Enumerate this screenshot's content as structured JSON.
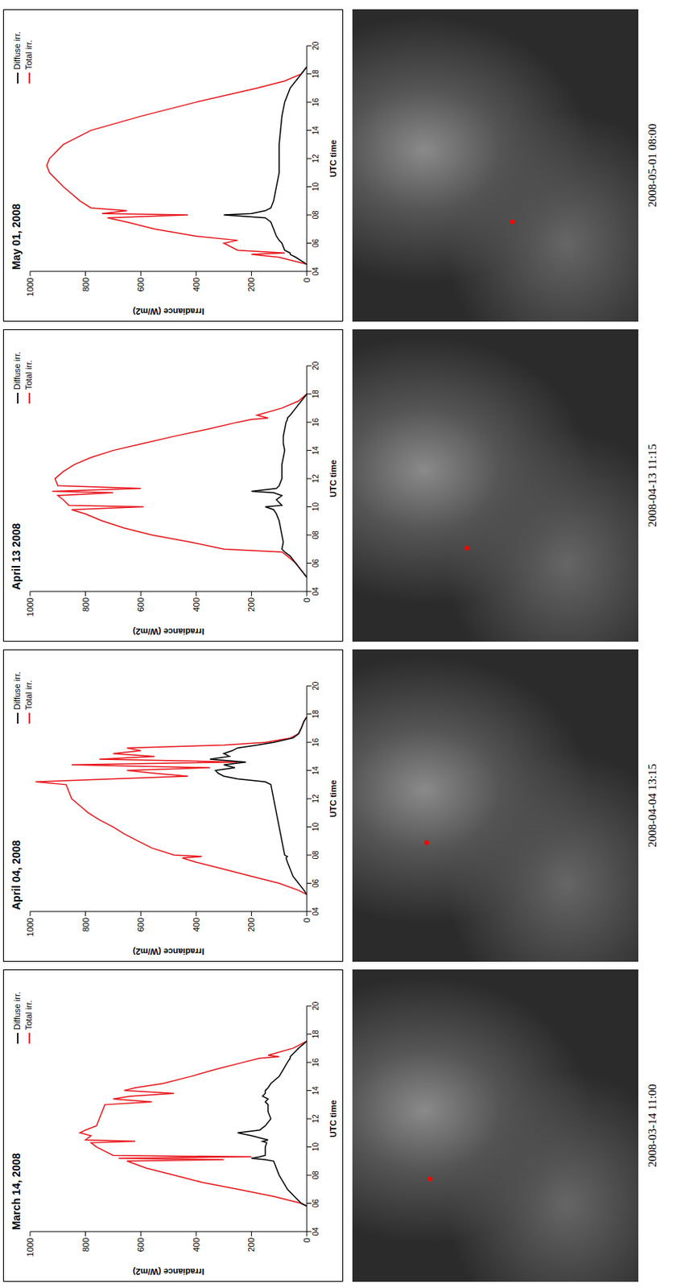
{
  "chart_data": [
    {
      "type": "line",
      "title": "March 14, 2008",
      "x_label": "UTC time",
      "y_label": "Irradiance (W/m2)",
      "xlim": [
        4,
        20
      ],
      "xticks": [
        {
          "value": 4,
          "label": "04"
        },
        {
          "value": 6,
          "label": "06"
        },
        {
          "value": 8,
          "label": "08"
        },
        {
          "value": 10,
          "label": "10"
        },
        {
          "value": 12,
          "label": "12"
        },
        {
          "value": 14,
          "label": "14"
        },
        {
          "value": 16,
          "label": "16"
        },
        {
          "value": 18,
          "label": "18"
        },
        {
          "value": 20,
          "label": "20"
        }
      ],
      "ylim": [
        0,
        1000
      ],
      "yticks": [
        0,
        200,
        400,
        600,
        800,
        1000
      ],
      "grid": false,
      "legend": "upper right",
      "x": [
        5.8,
        6,
        6.5,
        7,
        7.5,
        8,
        8.5,
        9,
        9.1,
        9.2,
        9.3,
        9.4,
        9.6,
        10,
        10.3,
        10.4,
        10.5,
        10.8,
        11,
        11.2,
        11.5,
        12,
        12.5,
        13,
        13.2,
        13.4,
        13.6,
        13.8,
        14,
        14.2,
        14.5,
        15,
        15.5,
        16,
        16.3,
        16.4,
        16.5,
        17,
        17.5
      ],
      "series": [
        {
          "name": "Total irr.",
          "color": "#e8151b",
          "values": [
            0,
            20,
            120,
            250,
            380,
            480,
            580,
            650,
            300,
            680,
            200,
            700,
            720,
            760,
            780,
            620,
            800,
            780,
            820,
            800,
            760,
            750,
            740,
            730,
            560,
            700,
            640,
            480,
            660,
            620,
            520,
            420,
            330,
            230,
            170,
            100,
            140,
            50,
            0
          ]
        },
        {
          "name": "Diffuse irr.",
          "color": "#000000",
          "values": [
            0,
            20,
            45,
            70,
            85,
            100,
            110,
            120,
            150,
            200,
            170,
            150,
            150,
            150,
            145,
            160,
            140,
            200,
            250,
            170,
            150,
            130,
            140,
            140,
            150,
            140,
            160,
            150,
            150,
            140,
            130,
            100,
            85,
            70,
            60,
            60,
            55,
            30,
            0
          ]
        }
      ]
    },
    {
      "type": "line",
      "title": "April 04, 2008",
      "x_label": "UTC time",
      "y_label": "Irradiance (W/m2)",
      "xlim": [
        4,
        20
      ],
      "xticks": [
        {
          "value": 4,
          "label": "04"
        },
        {
          "value": 6,
          "label": "06"
        },
        {
          "value": 8,
          "label": "08"
        },
        {
          "value": 10,
          "label": "10"
        },
        {
          "value": 12,
          "label": "12"
        },
        {
          "value": 14,
          "label": "14"
        },
        {
          "value": 16,
          "label": "16"
        },
        {
          "value": 18,
          "label": "18"
        },
        {
          "value": 20,
          "label": "20"
        }
      ],
      "ylim": [
        0,
        1000
      ],
      "yticks": [
        0,
        200,
        400,
        600,
        800,
        1000
      ],
      "grid": false,
      "legend": "upper right",
      "x": [
        5.2,
        5.5,
        6,
        6.5,
        7,
        7.5,
        7.8,
        7.9,
        8,
        8.5,
        9,
        9.5,
        10,
        10.5,
        11,
        11.5,
        12,
        12.5,
        13,
        13.2,
        13.4,
        13.6,
        13.8,
        14,
        14.2,
        14.4,
        14.6,
        14.8,
        15,
        15.2,
        15.4,
        15.6,
        15.8,
        16,
        16.3,
        16.6,
        17,
        17.5,
        17.8
      ],
      "series": [
        {
          "name": "Total irr.",
          "color": "#e8151b",
          "values": [
            0,
            30,
            100,
            200,
            300,
            400,
            450,
            380,
            480,
            560,
            610,
            660,
            700,
            750,
            790,
            820,
            850,
            860,
            870,
            980,
            700,
            430,
            550,
            650,
            350,
            850,
            250,
            750,
            550,
            700,
            600,
            650,
            300,
            150,
            60,
            30,
            20,
            10,
            0
          ]
        },
        {
          "name": "Diffuse irr.",
          "color": "#000000",
          "values": [
            0,
            10,
            30,
            50,
            60,
            70,
            75,
            70,
            80,
            85,
            90,
            95,
            100,
            105,
            110,
            115,
            120,
            125,
            130,
            150,
            250,
            300,
            320,
            330,
            260,
            300,
            220,
            350,
            280,
            300,
            270,
            250,
            180,
            120,
            50,
            30,
            20,
            10,
            0
          ]
        }
      ]
    },
    {
      "type": "line",
      "title": "April 13 2008",
      "x_label": "UTC time",
      "y_label": "Irradiance (W/m2)",
      "xlim": [
        4,
        20
      ],
      "xticks": [
        {
          "value": 4,
          "label": "04"
        },
        {
          "value": 6,
          "label": "06"
        },
        {
          "value": 8,
          "label": "08"
        },
        {
          "value": 10,
          "label": "10"
        },
        {
          "value": 12,
          "label": "12"
        },
        {
          "value": 14,
          "label": "14"
        },
        {
          "value": 16,
          "label": "16"
        },
        {
          "value": 18,
          "label": "18"
        },
        {
          "value": 20,
          "label": "20"
        }
      ],
      "ylim": [
        0,
        1000
      ],
      "yticks": [
        0,
        200,
        400,
        600,
        800,
        1000
      ],
      "grid": false,
      "legend": "upper right",
      "x": [
        5,
        5.5,
        6,
        6.5,
        6.8,
        7,
        7.5,
        8,
        8.5,
        9,
        9.5,
        9.8,
        10,
        10.1,
        10.5,
        10.8,
        11,
        11.1,
        11.3,
        11.5,
        12,
        12.5,
        13,
        13.5,
        14,
        14.5,
        15,
        15.5,
        16,
        16.2,
        16.3,
        16.5,
        17,
        17.5,
        18
      ],
      "series": [
        {
          "name": "Total irr.",
          "color": "#e8151b",
          "values": [
            0,
            20,
            40,
            70,
            90,
            300,
            420,
            560,
            660,
            740,
            800,
            850,
            590,
            860,
            880,
            900,
            700,
            920,
            600,
            900,
            910,
            880,
            840,
            780,
            700,
            590,
            480,
            360,
            250,
            200,
            140,
            180,
            90,
            30,
            0
          ]
        },
        {
          "name": "Diffuse irr.",
          "color": "#000000",
          "values": [
            0,
            20,
            40,
            60,
            80,
            90,
            85,
            90,
            95,
            100,
            110,
            120,
            150,
            90,
            110,
            90,
            120,
            200,
            110,
            100,
            90,
            90,
            90,
            85,
            80,
            85,
            85,
            80,
            75,
            70,
            70,
            60,
            40,
            20,
            0
          ]
        }
      ]
    },
    {
      "type": "line",
      "title": "May 01, 2008",
      "x_label": "UTC time",
      "y_label": "Irradiance (W/m2)",
      "xlim": [
        4,
        20
      ],
      "xticks": [
        {
          "value": 4,
          "label": "04"
        },
        {
          "value": 6,
          "label": "06"
        },
        {
          "value": 8,
          "label": "08"
        },
        {
          "value": 10,
          "label": "10"
        },
        {
          "value": 12,
          "label": "12"
        },
        {
          "value": 14,
          "label": "14"
        },
        {
          "value": 16,
          "label": "16"
        },
        {
          "value": 18,
          "label": "18"
        },
        {
          "value": 20,
          "label": "20"
        }
      ],
      "ylim": [
        0,
        1000
      ],
      "yticks": [
        0,
        200,
        400,
        600,
        800,
        1000
      ],
      "grid": false,
      "legend": "upper right",
      "x": [
        4.5,
        5,
        5.2,
        5.3,
        5.5,
        6,
        6.2,
        6.5,
        7,
        7.5,
        7.8,
        8,
        8.1,
        8.3,
        8.5,
        9,
        10,
        11,
        11.5,
        12,
        13,
        14,
        15,
        16,
        17,
        17.5,
        18,
        18.5
      ],
      "series": [
        {
          "name": "Total irr.",
          "color": "#e8151b",
          "values": [
            0,
            100,
            200,
            80,
            250,
            300,
            250,
            400,
            550,
            650,
            720,
            430,
            740,
            650,
            780,
            820,
            880,
            930,
            940,
            930,
            880,
            780,
            600,
            400,
            180,
            80,
            20,
            0
          ]
        },
        {
          "name": "Diffuse irr.",
          "color": "#000000",
          "values": [
            0,
            40,
            60,
            60,
            80,
            90,
            100,
            110,
            120,
            130,
            150,
            300,
            200,
            150,
            130,
            120,
            110,
            100,
            100,
            100,
            100,
            95,
            90,
            80,
            60,
            40,
            20,
            0
          ]
        }
      ]
    }
  ],
  "images": [
    "2008-03-14 11:00",
    "2008-04-04 13:15",
    "2008-04-13 11:15",
    "2008-05-01 08:00"
  ]
}
